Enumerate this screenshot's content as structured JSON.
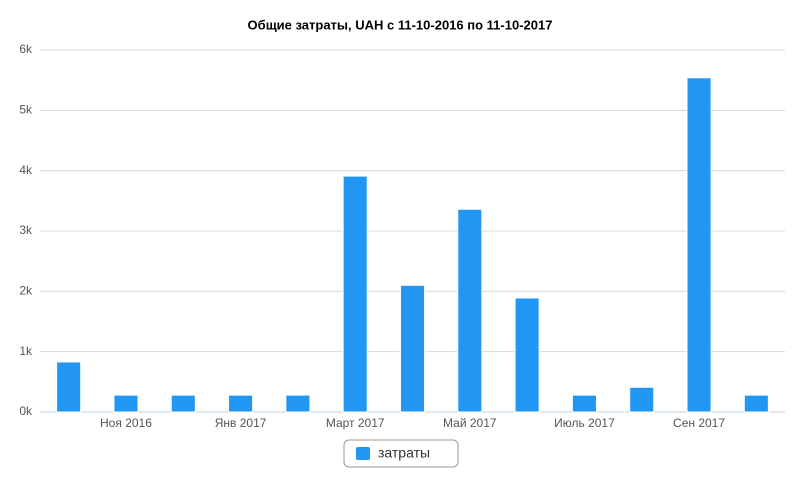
{
  "chart_data": {
    "type": "bar",
    "title": "Общие затраты, UAH с 11-10-2016 по 11-10-2017",
    "categories": [
      null,
      "Ноя 2016",
      null,
      "Янв 2017",
      null,
      "Март 2017",
      null,
      "Май 2017",
      null,
      "Июль 2017",
      null,
      "Сен 2017",
      null
    ],
    "series": [
      {
        "name": "затраты",
        "color": "#2196f3",
        "values": [
          830,
          280,
          280,
          280,
          280,
          3910,
          2100,
          3360,
          1890,
          280,
          410,
          5540,
          280
        ]
      }
    ],
    "ylim": [
      0,
      6000
    ],
    "yticks": [
      {
        "value": 0,
        "label": "0k"
      },
      {
        "value": 1000,
        "label": "1k"
      },
      {
        "value": 2000,
        "label": "2k"
      },
      {
        "value": 3000,
        "label": "3k"
      },
      {
        "value": 4000,
        "label": "4k"
      },
      {
        "value": 5000,
        "label": "5k"
      },
      {
        "value": 6000,
        "label": "6k"
      }
    ],
    "grid": true
  }
}
